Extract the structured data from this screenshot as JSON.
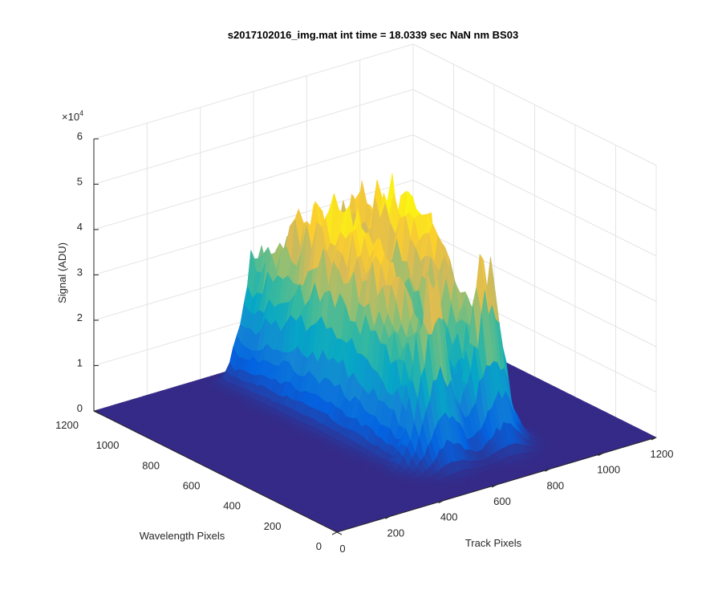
{
  "chart_data": {
    "type": "surface",
    "title": "s2017102016_img.mat int time = 18.0339 sec  NaN nm BS03",
    "xlabel": "Track Pixels",
    "ylabel": "Wavelength Pixels",
    "zlabel": "Signal (ADU)",
    "z_exponent_label": "×10",
    "z_exponent_power": "4",
    "xlim": [
      0,
      1200
    ],
    "ylim": [
      0,
      1200
    ],
    "zlim": [
      0,
      60000
    ],
    "x_ticks": [
      "0",
      "200",
      "400",
      "600",
      "800",
      "1000",
      "1200"
    ],
    "y_ticks": [
      "0",
      "200",
      "400",
      "600",
      "800",
      "1000",
      "1200"
    ],
    "z_ticks": [
      "0",
      "1",
      "2",
      "3",
      "4",
      "5",
      "6"
    ],
    "grid": true,
    "colormap": "parula",
    "colormap_colors": [
      "#352a87",
      "#0363e1",
      "#1485d4",
      "#06a7c6",
      "#38b99e",
      "#92bf73",
      "#d9ba56",
      "#fcce2e",
      "#f9fb0e"
    ],
    "peaks": [
      {
        "track_center": 560,
        "track_width": 55,
        "wavelength_start": 300,
        "wavelength_end": 1100,
        "height": 43000
      },
      {
        "track_center": 760,
        "track_width": 55,
        "wavelength_start": 300,
        "wavelength_end": 1100,
        "height": 44000
      }
    ]
  }
}
